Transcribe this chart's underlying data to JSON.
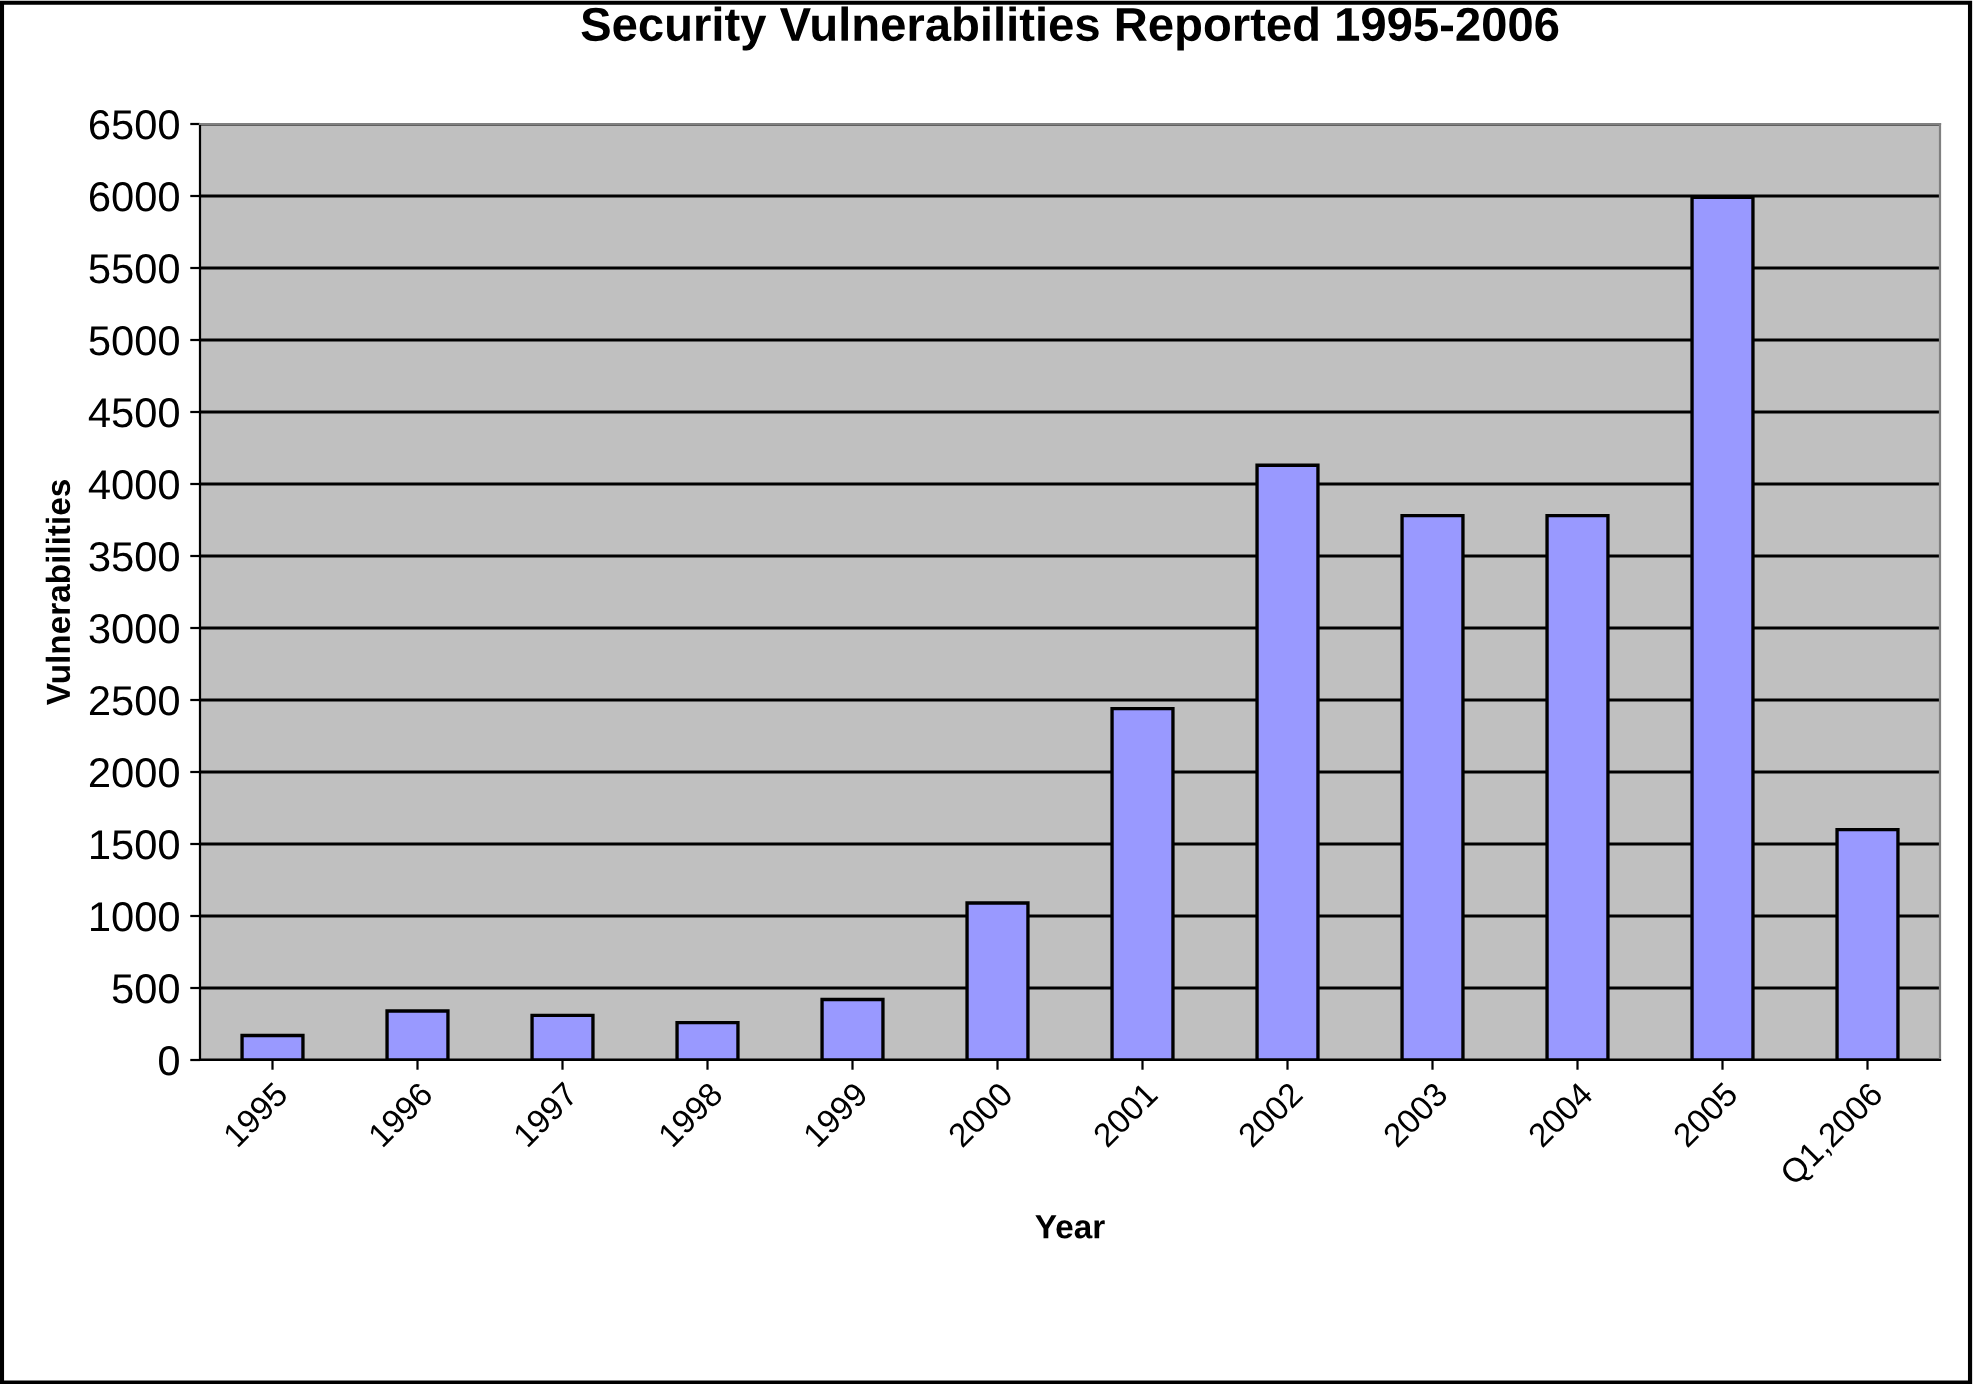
{
  "chart_data": {
    "type": "bar",
    "title": "Security Vulnerabilities Reported 1995-2006",
    "xlabel": "Year",
    "ylabel": "Vulnerabilities",
    "categories": [
      "1995",
      "1996",
      "1997",
      "1998",
      "1999",
      "2000",
      "2001",
      "2002",
      "2003",
      "2004",
      "2005",
      "Q1,2006"
    ],
    "values": [
      170,
      340,
      310,
      260,
      420,
      1090,
      2440,
      4130,
      3780,
      3780,
      5990,
      1600
    ],
    "color": "#9999ff",
    "ylim": [
      0,
      6500
    ],
    "yticks": [
      0,
      500,
      1000,
      1500,
      2000,
      2500,
      3000,
      3500,
      4000,
      4500,
      5000,
      5500,
      6000,
      6500
    ],
    "grid": "y",
    "legend": false
  }
}
